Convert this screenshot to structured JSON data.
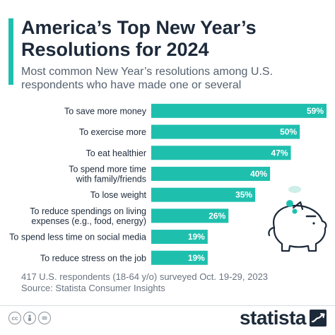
{
  "header": {
    "title": "America’s Top New Year’s Resolutions for 2024",
    "subtitle": "Most common New Year’s resolutions among U.S. respondents who have made one or several"
  },
  "footer": {
    "note": "417 U.S. respondents (18-64 y/o) surveyed Oct. 19-29, 2023",
    "source": "Source: Statista Consumer Insights",
    "license_icons": [
      "cc-icon",
      "person-icon",
      "equals-icon"
    ],
    "logo_text": "statista",
    "logo_icon": "wave-arrow-icon"
  },
  "colors": {
    "bar": "#1fbfae",
    "title": "#1d2a3a",
    "decoration": "#bfeee8"
  },
  "decoration_icon": "piggy-bank-icon",
  "chart_data": {
    "type": "bar",
    "orientation": "horizontal",
    "categories": [
      [
        "To save more money"
      ],
      [
        "To exercise more"
      ],
      [
        "To eat healthier"
      ],
      [
        "To spend more time",
        "with family/friends"
      ],
      [
        "To lose weight"
      ],
      [
        "To reduce spendings on living",
        "expenses (e.g., food, energy)"
      ],
      [
        "To spend less time on social media"
      ],
      [
        "To reduce stress on the job"
      ]
    ],
    "values": [
      59,
      50,
      47,
      40,
      35,
      26,
      19,
      19
    ],
    "value_labels": [
      "59%",
      "50%",
      "47%",
      "40%",
      "35%",
      "26%",
      "19%",
      "19%"
    ],
    "unit": "%",
    "xlim": [
      0,
      59
    ],
    "grid": false,
    "legend": "none"
  }
}
